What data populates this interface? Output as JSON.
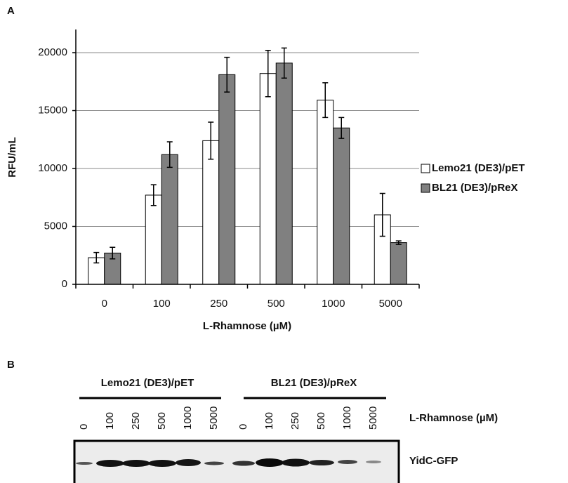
{
  "panel_a_label": "A",
  "chart_data": {
    "type": "bar",
    "categories": [
      "0",
      "100",
      "250",
      "500",
      "1000",
      "5000"
    ],
    "series": [
      {
        "name": "Lemo21 (DE3)/pET",
        "color": "#ffffff",
        "values": [
          2300,
          7700,
          12400,
          18200,
          15900,
          6000
        ],
        "errors": [
          450,
          900,
          1600,
          2000,
          1500,
          1850
        ]
      },
      {
        "name": "BL21 (DE3)/pReX",
        "color": "#808080",
        "values": [
          2700,
          11200,
          18100,
          19100,
          13500,
          3600
        ],
        "errors": [
          500,
          1100,
          1500,
          1300,
          900,
          150
        ]
      }
    ],
    "ylim": [
      0,
      22000
    ],
    "yticks": [
      0,
      5000,
      10000,
      15000,
      20000
    ],
    "grid": true,
    "y_label": "RFU/mL",
    "x_label": "L-Rhamnose (µM)",
    "legend": "right"
  },
  "blot": {
    "label": "B",
    "groups": [
      {
        "name": "Lemo21 (DE3)/pET",
        "lanes": [
          "0",
          "100",
          "250",
          "500",
          "1000",
          "5000"
        ]
      },
      {
        "name": "BL21 (DE3)/pReX",
        "lanes": [
          "0",
          "100",
          "250",
          "500",
          "1000",
          "5000"
        ]
      }
    ],
    "lane_axis_label": "L-Rhamnose (µM)",
    "band_label": "YidC-GFP"
  }
}
